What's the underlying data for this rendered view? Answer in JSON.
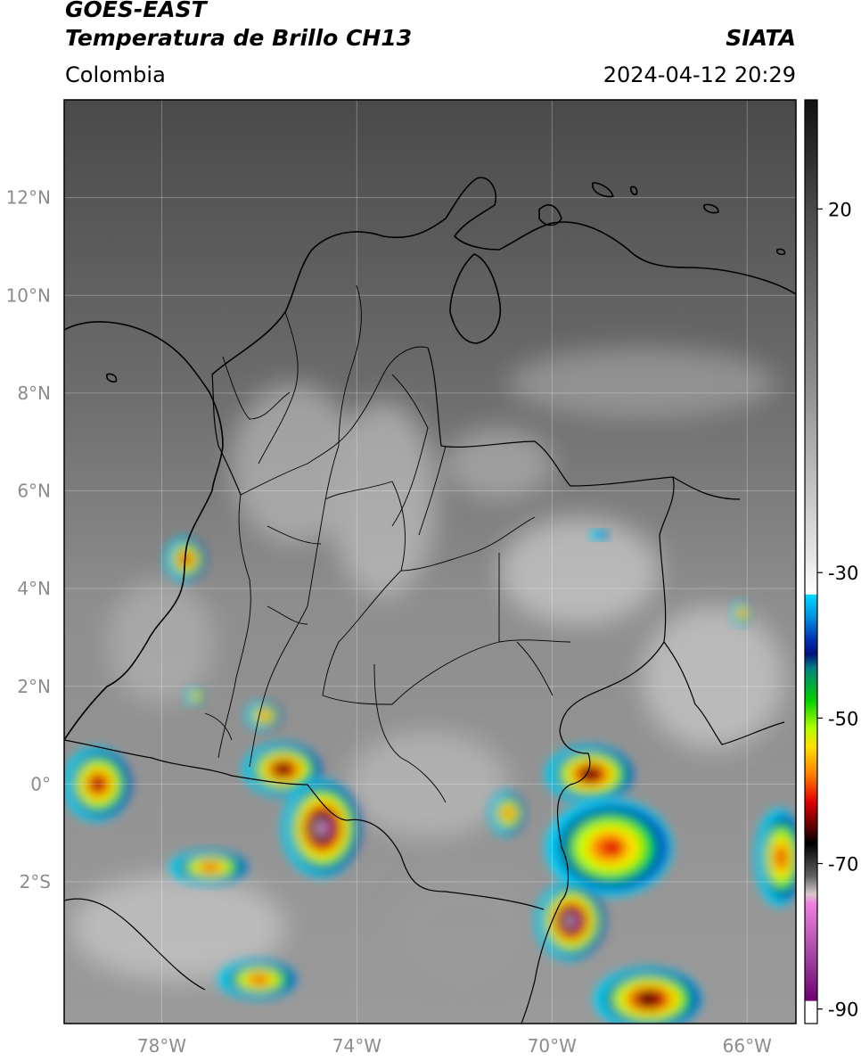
{
  "header": {
    "satellite": "GOES-EAST",
    "product": "Temperatura de Brillo CH13",
    "region": "Colombia",
    "agency": "SIATA",
    "datetime": "2024-04-12 20:29"
  },
  "axes": {
    "lat_ticks": [
      {
        "value": 12,
        "label": "12°N"
      },
      {
        "value": 10,
        "label": "10°N"
      },
      {
        "value": 8,
        "label": "8°N"
      },
      {
        "value": 6,
        "label": "6°N"
      },
      {
        "value": 4,
        "label": "4°N"
      },
      {
        "value": 2,
        "label": "2°N"
      },
      {
        "value": 0,
        "label": "0°"
      },
      {
        "value": -2,
        "label": "2°S"
      }
    ],
    "lon_ticks": [
      {
        "value": -78,
        "label": "78°W"
      },
      {
        "value": -74,
        "label": "74°W"
      },
      {
        "value": -70,
        "label": "70°W"
      },
      {
        "value": -66,
        "label": "66°W"
      }
    ],
    "lon_range": [
      -80.0,
      -65.0
    ],
    "lat_range": [
      -4.9,
      14.0
    ],
    "grid": true
  },
  "colorbar": {
    "ticks": [
      {
        "value": 20,
        "label": "20"
      },
      {
        "value": -30,
        "label": "-30"
      },
      {
        "value": -50,
        "label": "-50"
      },
      {
        "value": -70,
        "label": "-70"
      },
      {
        "value": -90,
        "label": "-90"
      }
    ],
    "range": [
      -92,
      35
    ],
    "colors": {
      "warm_top": "#111111",
      "gray_mid": "#8a8a8a",
      "gray_light": "#f0f0f0",
      "cyan": "#00d8ff",
      "blue": "#0040c0",
      "dark_blue": "#001080",
      "teal": "#008a8a",
      "green": "#00e000",
      "yellow_green": "#c8ff00",
      "yellow": "#ffe000",
      "orange": "#ff8000",
      "red": "#e00000",
      "dark_red": "#600000",
      "black": "#000000",
      "pink": "#e070d0",
      "purple": "#800080"
    }
  },
  "clouds": [
    {
      "lon": -79.3,
      "lat": 0.0,
      "rx": 0.7,
      "ry": 0.75,
      "min_temp": -68
    },
    {
      "lon": -75.5,
      "lat": 0.3,
      "rx": 0.8,
      "ry": 0.55,
      "min_temp": -72
    },
    {
      "lon": -74.7,
      "lat": -0.9,
      "rx": 0.8,
      "ry": 1.0,
      "min_temp": -84
    },
    {
      "lon": -75.9,
      "lat": 1.4,
      "rx": 0.35,
      "ry": 0.3,
      "min_temp": -62
    },
    {
      "lon": -77.5,
      "lat": 4.6,
      "rx": 0.4,
      "ry": 0.45,
      "min_temp": -66
    },
    {
      "lon": -77.3,
      "lat": 1.8,
      "rx": 0.2,
      "ry": 0.2,
      "min_temp": -58
    },
    {
      "lon": -77.0,
      "lat": -1.7,
      "rx": 0.8,
      "ry": 0.35,
      "min_temp": -60
    },
    {
      "lon": -76.0,
      "lat": -4.0,
      "rx": 0.8,
      "ry": 0.4,
      "min_temp": -62
    },
    {
      "lon": -69.2,
      "lat": 0.2,
      "rx": 0.9,
      "ry": 0.6,
      "min_temp": -72
    },
    {
      "lon": -68.8,
      "lat": -1.3,
      "rx": 1.3,
      "ry": 1.0,
      "min_temp": -60
    },
    {
      "lon": -69.6,
      "lat": -2.8,
      "rx": 0.7,
      "ry": 0.8,
      "min_temp": -84
    },
    {
      "lon": -68.0,
      "lat": -4.4,
      "rx": 1.1,
      "ry": 0.65,
      "min_temp": -70
    },
    {
      "lon": -65.3,
      "lat": -1.5,
      "rx": 0.5,
      "ry": 1.0,
      "min_temp": -62
    },
    {
      "lon": -70.9,
      "lat": -0.6,
      "rx": 0.35,
      "ry": 0.45,
      "min_temp": -64
    },
    {
      "lon": -66.1,
      "lat": 3.5,
      "rx": 0.2,
      "ry": 0.25,
      "min_temp": -60
    },
    {
      "lon": -69.0,
      "lat": 5.1,
      "rx": 0.2,
      "ry": 0.1,
      "min_temp": -28
    }
  ]
}
